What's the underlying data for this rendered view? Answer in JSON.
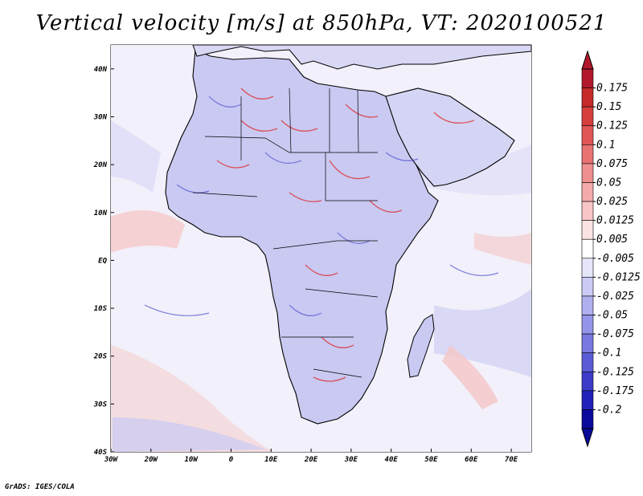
{
  "title": "Vertical velocity [m/s] at 850hPa, VT: 2020100521",
  "credit": "GrADS: IGES/COLA",
  "map": {
    "lon_range": [
      -30,
      75
    ],
    "lat_range": [
      -40,
      45
    ],
    "lat_ticks": [
      {
        "value": 40,
        "label": "40N"
      },
      {
        "value": 30,
        "label": "30N"
      },
      {
        "value": 20,
        "label": "20N"
      },
      {
        "value": 10,
        "label": "10N"
      },
      {
        "value": 0,
        "label": "EQ"
      },
      {
        "value": -10,
        "label": "10S"
      },
      {
        "value": -20,
        "label": "20S"
      },
      {
        "value": -30,
        "label": "30S"
      },
      {
        "value": -40,
        "label": "40S"
      }
    ],
    "lon_ticks": [
      {
        "value": -30,
        "label": "30W"
      },
      {
        "value": -20,
        "label": "20W"
      },
      {
        "value": -10,
        "label": "10W"
      },
      {
        "value": 0,
        "label": "0"
      },
      {
        "value": 10,
        "label": "10E"
      },
      {
        "value": 20,
        "label": "20E"
      },
      {
        "value": 30,
        "label": "30E"
      },
      {
        "value": 40,
        "label": "40E"
      },
      {
        "value": 50,
        "label": "50E"
      },
      {
        "value": 60,
        "label": "60E"
      },
      {
        "value": 70,
        "label": "70E"
      }
    ]
  },
  "colorbar": {
    "labels": [
      "0.175",
      "0.15",
      "0.125",
      "0.1",
      "0.075",
      "0.05",
      "0.025",
      "0.0125",
      "0.005",
      "-0.005",
      "-0.0125",
      "-0.025",
      "-0.05",
      "-0.075",
      "-0.1",
      "-0.125",
      "-0.175",
      "-0.2"
    ],
    "colors": [
      "#b2182b",
      "#c62a2a",
      "#d63e3e",
      "#e05656",
      "#e87272",
      "#ef8f8f",
      "#f4aaaa",
      "#f8c6c6",
      "#fce3e3",
      "#ffffff",
      "#e6e6fb",
      "#cbcbf6",
      "#afaff0",
      "#9494e9",
      "#7878e0",
      "#5b5bd6",
      "#3c3cc9",
      "#2222b8",
      "#0a0a9c"
    ]
  }
}
